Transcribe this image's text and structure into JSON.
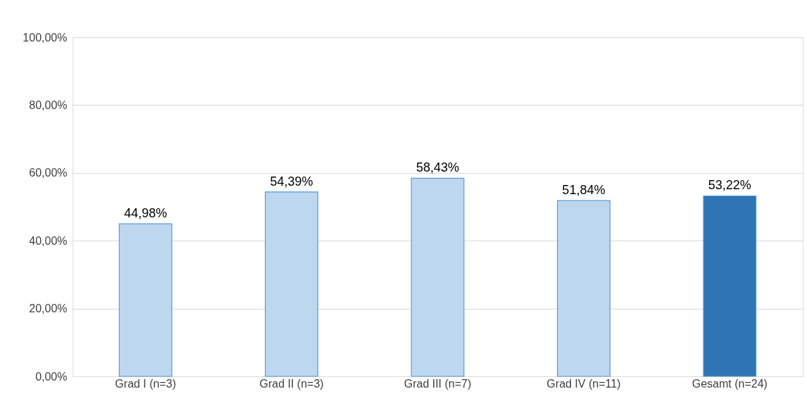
{
  "chart_data": {
    "type": "bar",
    "categories": [
      "Grad I (n=3)",
      "Grad II (n=3)",
      "Grad III (n=7)",
      "Grad IV (n=11)",
      "Gesamt (n=24)"
    ],
    "values": [
      44.98,
      54.39,
      58.43,
      51.84,
      53.22
    ],
    "colors": [
      "#bdd7ee",
      "#bdd7ee",
      "#bdd7ee",
      "#bdd7ee",
      "#2e75b6"
    ],
    "value_labels": [
      "44,98%",
      "54,39%",
      "58,43%",
      "51,84%",
      "53,22%"
    ],
    "ylim": [
      0,
      100
    ],
    "yticks": [
      {
        "value": 0,
        "label": "0,00%"
      },
      {
        "value": 20,
        "label": "20,00%"
      },
      {
        "value": 40,
        "label": "40,00%"
      },
      {
        "value": 60,
        "label": "60,00%"
      },
      {
        "value": 80,
        "label": "80,00%"
      },
      {
        "value": 100,
        "label": "100,00%"
      }
    ],
    "grid": "y",
    "legend": false
  }
}
